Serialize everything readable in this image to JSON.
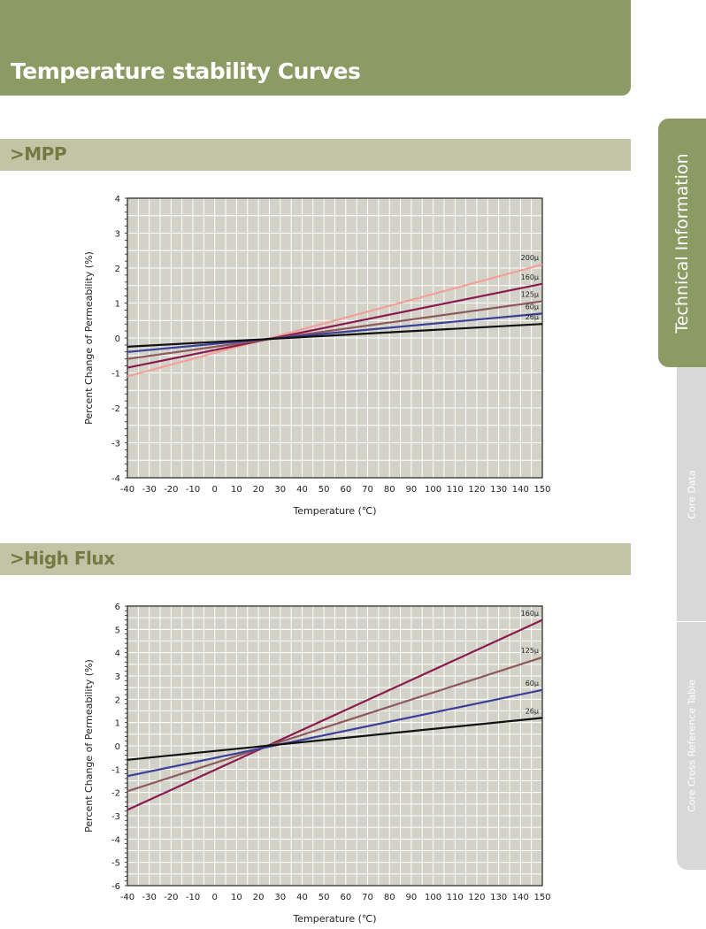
{
  "header": {
    "title": "Temperature stability Curves"
  },
  "sections": [
    {
      "label": ">MPP"
    },
    {
      "label": ">High Flux"
    }
  ],
  "side_tabs": [
    {
      "label": "Technical Information",
      "active": true
    },
    {
      "label": "Core Data",
      "active": false
    },
    {
      "label": "Core Cross Reference Table",
      "active": false
    }
  ],
  "colors": {
    "accent": "#8c9a63",
    "section_bar": "#c3c4a6",
    "section_text": "#737b42",
    "plot_bg": "#d2d2c8",
    "grid": "#ffffff"
  },
  "chart_data": [
    {
      "type": "line",
      "xlabel": "Temperature (℃)",
      "ylabel": "Percent Change of Permeability (%)",
      "xlim": [
        -40,
        150
      ],
      "ylim": [
        -4,
        4
      ],
      "xticks": [
        -40,
        -30,
        -20,
        -10,
        0,
        10,
        20,
        30,
        40,
        50,
        60,
        70,
        80,
        90,
        100,
        110,
        120,
        130,
        140,
        150
      ],
      "yticks": [
        -4,
        -3,
        -2,
        -1,
        0,
        1,
        2,
        3,
        4
      ],
      "grid": true,
      "series": [
        {
          "name": "200μ",
          "color": "#f4a09a",
          "x": [
            -40,
            150
          ],
          "y": [
            -1.1,
            2.1
          ]
        },
        {
          "name": "160μ",
          "color": "#8c1a4e",
          "x": [
            -40,
            150
          ],
          "y": [
            -0.85,
            1.55
          ]
        },
        {
          "name": "125μ",
          "color": "#8f5a5c",
          "x": [
            -40,
            150
          ],
          "y": [
            -0.6,
            1.05
          ]
        },
        {
          "name": "60μ",
          "color": "#3a3f9a",
          "x": [
            -40,
            150
          ],
          "y": [
            -0.4,
            0.7
          ]
        },
        {
          "name": "26μ",
          "color": "#111111",
          "x": [
            -40,
            150
          ],
          "y": [
            -0.25,
            0.4
          ]
        }
      ]
    },
    {
      "type": "line",
      "xlabel": "Temperature (℃)",
      "ylabel": "Percent Change of Permeability (%)",
      "xlim": [
        -40,
        150
      ],
      "ylim": [
        -6,
        6
      ],
      "xticks": [
        -40,
        -30,
        -20,
        -10,
        0,
        10,
        20,
        30,
        40,
        50,
        60,
        70,
        80,
        90,
        100,
        110,
        120,
        130,
        140,
        150
      ],
      "yticks": [
        -6,
        -5,
        -4,
        -3,
        -2,
        -1,
        0,
        1,
        2,
        3,
        4,
        5,
        6
      ],
      "grid": true,
      "series": [
        {
          "name": "160μ",
          "color": "#8c1a4e",
          "x": [
            -40,
            150
          ],
          "y": [
            -2.75,
            5.4
          ]
        },
        {
          "name": "125μ",
          "color": "#8f5a5c",
          "x": [
            -40,
            150
          ],
          "y": [
            -1.95,
            3.8
          ]
        },
        {
          "name": "60μ",
          "color": "#3a3f9a",
          "x": [
            -40,
            150
          ],
          "y": [
            -1.3,
            2.4
          ]
        },
        {
          "name": "26μ",
          "color": "#111111",
          "x": [
            -40,
            150
          ],
          "y": [
            -0.6,
            1.2
          ]
        }
      ]
    }
  ]
}
